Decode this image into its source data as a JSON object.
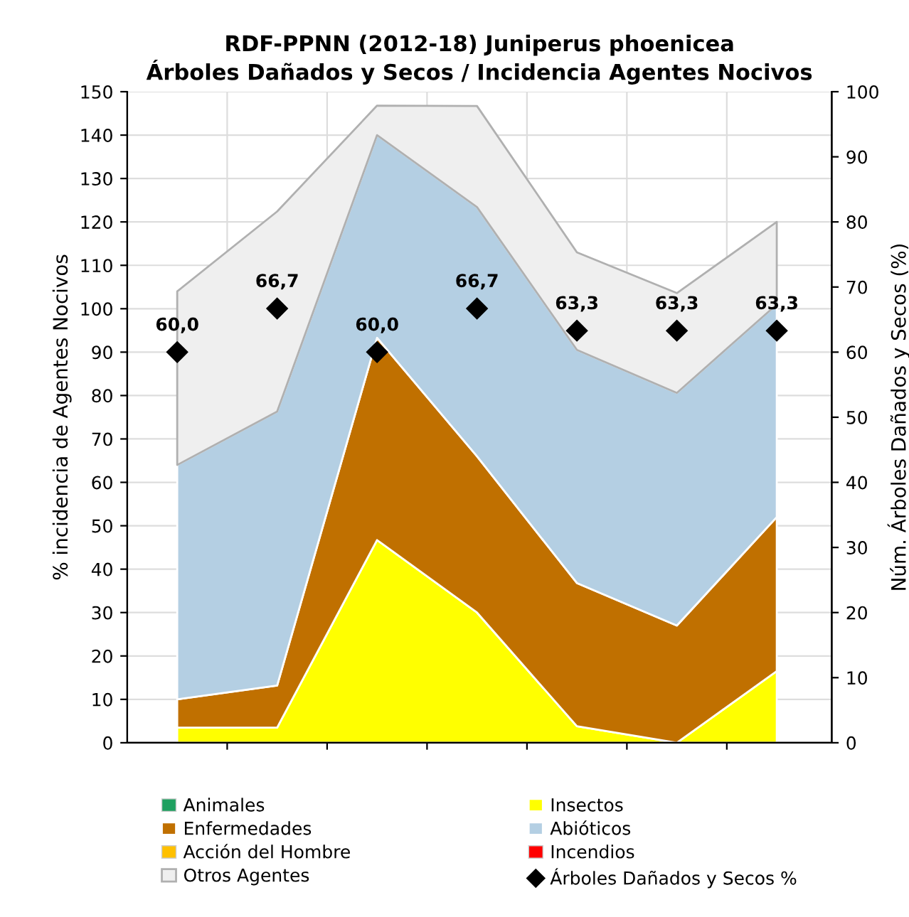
{
  "chart_data": {
    "type": "area",
    "stacked": true,
    "title": "RDF-PPNN (2012-18) Juniperus phoenicea\nÁrboles Dañados y Secos / Incidencia Agentes Nocivos",
    "ylabel": "% incidencia de Agentes Nocivos",
    "y2label": "Núm. Árboles Dañados y Secos (%)",
    "categories": [
      null,
      null,
      null,
      null,
      null,
      null,
      null
    ],
    "ylim": [
      0,
      150
    ],
    "yticks": [
      0,
      10,
      20,
      30,
      40,
      50,
      60,
      70,
      80,
      90,
      100,
      110,
      120,
      130,
      140,
      150
    ],
    "y2lim": [
      0,
      100
    ],
    "y2ticks": [
      0,
      10,
      20,
      30,
      40,
      50,
      60,
      70,
      80,
      90,
      100
    ],
    "grid": true,
    "legend": "bottom",
    "series": [
      {
        "name": "Animales",
        "color": "#1fa060",
        "values": [
          null,
          null,
          null,
          null,
          null,
          null,
          null
        ]
      },
      {
        "name": "Insectos",
        "color": "#ffff00",
        "values": [
          3.5,
          3.5,
          46.7,
          30,
          3.8,
          0,
          16.5
        ]
      },
      {
        "name": "Enfermedades",
        "color": "#c07000",
        "values": [
          6.5,
          9.7,
          46.6,
          36,
          33,
          27,
          35.5
        ]
      },
      {
        "name": "Abióticos",
        "color": "#b4cfe3",
        "values": [
          54,
          63.1,
          46.7,
          57.4,
          53.7,
          53.6,
          49
        ]
      },
      {
        "name": "Acción del Hombre",
        "color": "#ffc000",
        "values": [
          null,
          null,
          null,
          null,
          null,
          null,
          null
        ]
      },
      {
        "name": "Incendios",
        "color": "#ff0000",
        "values": [
          null,
          null,
          null,
          null,
          null,
          null,
          null
        ]
      },
      {
        "name": "Otros Agentes",
        "color": "#efefef",
        "values": [
          40,
          46.1,
          6.8,
          23.3,
          22.5,
          23,
          19
        ]
      },
      {
        "name": "Árboles Dañados y Secos %",
        "type": "scatter",
        "axis": "y2",
        "color": "#000000",
        "marker": "diamond",
        "values": [
          60,
          66.7,
          60,
          66.7,
          63.3,
          63.3,
          63.3
        ],
        "value_labels": [
          "60,0",
          "66,7",
          "60,0",
          "66,7",
          "63,3",
          "63,3",
          "63,3"
        ]
      }
    ]
  }
}
